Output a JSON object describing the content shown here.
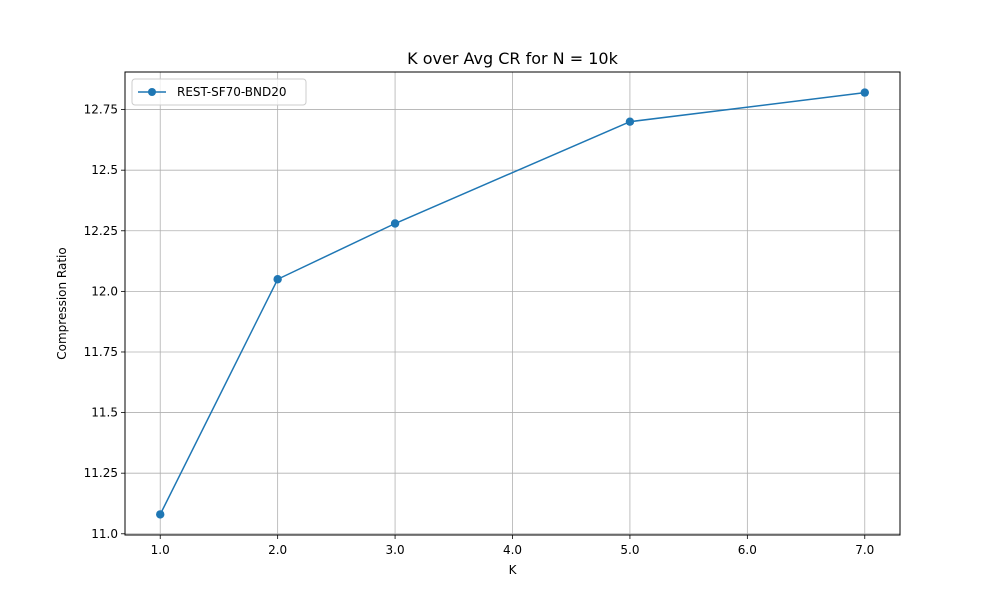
{
  "chart_data": {
    "type": "line",
    "title": "K over Avg CR for N = 10k",
    "xlabel": "K",
    "ylabel": "Compression Ratio",
    "x_ticks": [
      "1.0",
      "2.0",
      "3.0",
      "4.0",
      "5.0",
      "6.0",
      "7.0"
    ],
    "y_ticks": [
      "11.0",
      "11.25",
      "11.5",
      "11.75",
      "12.0",
      "12.25",
      "12.5",
      "12.75"
    ],
    "xlim": [
      0.7,
      7.3
    ],
    "ylim": [
      10.995,
      12.905
    ],
    "grid": true,
    "legend_position": "upper-left",
    "series": [
      {
        "name": "REST-SF70-BND20",
        "color": "#1f77b4",
        "marker": "circle",
        "x": [
          1,
          2,
          3,
          5,
          7
        ],
        "y": [
          11.08,
          12.05,
          12.28,
          12.7,
          12.82
        ]
      }
    ]
  }
}
